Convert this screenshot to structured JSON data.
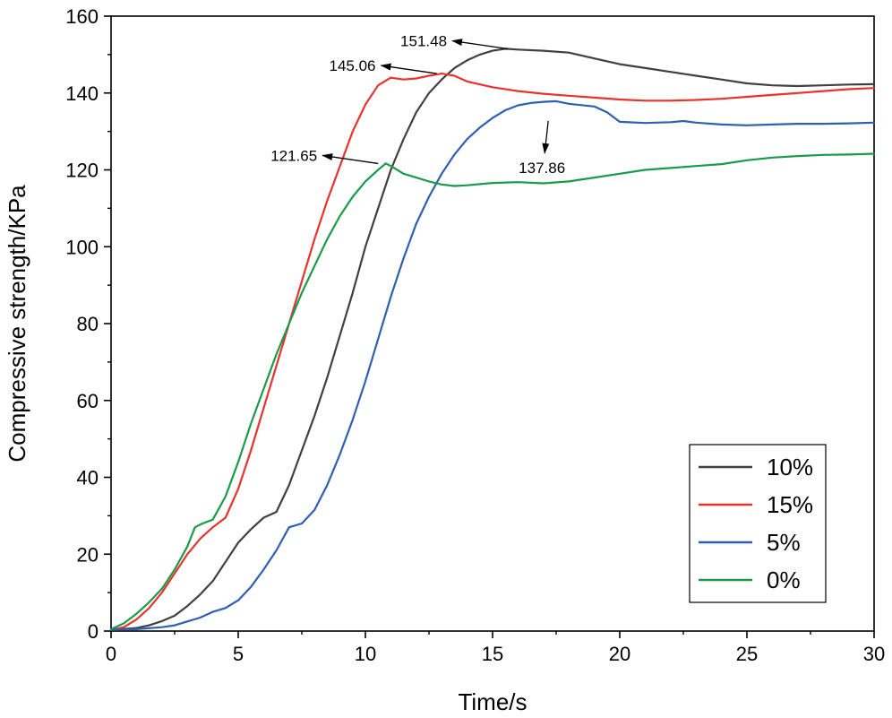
{
  "chart_data": {
    "type": "line",
    "title": "",
    "xlabel": "Time/s",
    "ylabel": "Compressive strength/KPa",
    "xlim": [
      0,
      30
    ],
    "ylim": [
      0,
      160
    ],
    "xticks": [
      0,
      5,
      10,
      15,
      20,
      25,
      30
    ],
    "yticks": [
      0,
      20,
      40,
      60,
      80,
      100,
      120,
      140,
      160
    ],
    "x_tick_labels": [
      "0",
      "5",
      "10",
      "15",
      "20",
      "25",
      "30"
    ],
    "y_tick_labels": [
      "0",
      "20",
      "40",
      "60",
      "80",
      "100",
      "120",
      "140",
      "160"
    ],
    "grid": false,
    "legend_position": "bottom-right",
    "series": [
      {
        "name": "10%",
        "color": "#404040",
        "points": [
          [
            0,
            0.3
          ],
          [
            1,
            0.8
          ],
          [
            1.5,
            1.5
          ],
          [
            2,
            2.6
          ],
          [
            2.5,
            4
          ],
          [
            3,
            6.5
          ],
          [
            3.5,
            9.5
          ],
          [
            4,
            13
          ],
          [
            4.5,
            18
          ],
          [
            5,
            23
          ],
          [
            5.5,
            26.5
          ],
          [
            6,
            29.5
          ],
          [
            6.5,
            31
          ],
          [
            7,
            38
          ],
          [
            7.5,
            47
          ],
          [
            8,
            56
          ],
          [
            8.5,
            66
          ],
          [
            9,
            77
          ],
          [
            9.5,
            88
          ],
          [
            10,
            100
          ],
          [
            10.5,
            110
          ],
          [
            11,
            120
          ],
          [
            11.5,
            128
          ],
          [
            12,
            135
          ],
          [
            12.5,
            140
          ],
          [
            13,
            143.5
          ],
          [
            13.5,
            146.5
          ],
          [
            14,
            148.5
          ],
          [
            14.5,
            150
          ],
          [
            15,
            151
          ],
          [
            15.5,
            151.5
          ],
          [
            16,
            151.3
          ],
          [
            17,
            151
          ],
          [
            18,
            150.5
          ],
          [
            19,
            149
          ],
          [
            20,
            147.5
          ],
          [
            21,
            146.5
          ],
          [
            22,
            145.5
          ],
          [
            23,
            144.5
          ],
          [
            24,
            143.5
          ],
          [
            25,
            142.5
          ],
          [
            26,
            142
          ],
          [
            27,
            141.8
          ],
          [
            28,
            142
          ],
          [
            29,
            142.2
          ],
          [
            30,
            142.3
          ]
        ]
      },
      {
        "name": "15%",
        "color": "#e8332d",
        "points": [
          [
            0,
            0.3
          ],
          [
            0.5,
            1
          ],
          [
            1,
            3
          ],
          [
            1.5,
            6
          ],
          [
            2,
            10
          ],
          [
            2.5,
            15
          ],
          [
            3,
            20
          ],
          [
            3.5,
            24
          ],
          [
            4,
            27
          ],
          [
            4.5,
            29.5
          ],
          [
            5,
            37
          ],
          [
            5.5,
            47
          ],
          [
            6,
            58
          ],
          [
            6.5,
            69
          ],
          [
            7,
            80
          ],
          [
            7.5,
            91
          ],
          [
            8,
            102
          ],
          [
            8.5,
            112
          ],
          [
            9,
            121
          ],
          [
            9.5,
            130
          ],
          [
            10,
            137
          ],
          [
            10.5,
            142
          ],
          [
            11,
            144
          ],
          [
            11.5,
            143.5
          ],
          [
            12,
            143.8
          ],
          [
            12.5,
            144.5
          ],
          [
            13,
            145.06
          ],
          [
            13.5,
            144.5
          ],
          [
            14,
            143
          ],
          [
            15,
            141.5
          ],
          [
            16,
            140.5
          ],
          [
            17,
            139.8
          ],
          [
            18,
            139.3
          ],
          [
            19,
            138.8
          ],
          [
            20,
            138.3
          ],
          [
            21,
            138
          ],
          [
            22,
            138
          ],
          [
            23,
            138.2
          ],
          [
            24,
            138.5
          ],
          [
            25,
            139
          ],
          [
            26,
            139.5
          ],
          [
            27,
            140
          ],
          [
            28,
            140.5
          ],
          [
            29,
            141
          ],
          [
            30,
            141.3
          ]
        ]
      },
      {
        "name": "5%",
        "color": "#2f5fb0",
        "points": [
          [
            0,
            0.3
          ],
          [
            1,
            0.5
          ],
          [
            2,
            1
          ],
          [
            2.5,
            1.5
          ],
          [
            3,
            2.5
          ],
          [
            3.5,
            3.5
          ],
          [
            4,
            5
          ],
          [
            4.5,
            6
          ],
          [
            5,
            8
          ],
          [
            5.5,
            11.5
          ],
          [
            6,
            16
          ],
          [
            6.5,
            21
          ],
          [
            7,
            27
          ],
          [
            7.5,
            28
          ],
          [
            8,
            31.5
          ],
          [
            8.5,
            38
          ],
          [
            9,
            46
          ],
          [
            9.5,
            55
          ],
          [
            10,
            65
          ],
          [
            10.5,
            76
          ],
          [
            11,
            87
          ],
          [
            11.5,
            97
          ],
          [
            12,
            106
          ],
          [
            12.5,
            113
          ],
          [
            13,
            119
          ],
          [
            13.5,
            124
          ],
          [
            14,
            128
          ],
          [
            14.5,
            131
          ],
          [
            15,
            133.5
          ],
          [
            15.5,
            135.5
          ],
          [
            16,
            136.8
          ],
          [
            16.5,
            137.4
          ],
          [
            17,
            137.7
          ],
          [
            17.5,
            137.86
          ],
          [
            18,
            137.2
          ],
          [
            19,
            136.5
          ],
          [
            19.5,
            135
          ],
          [
            20,
            132.5
          ],
          [
            21,
            132.2
          ],
          [
            22,
            132.4
          ],
          [
            22.5,
            132.7
          ],
          [
            23,
            132.3
          ],
          [
            24,
            131.8
          ],
          [
            25,
            131.6
          ],
          [
            26,
            131.8
          ],
          [
            27,
            132
          ],
          [
            28,
            132
          ],
          [
            29,
            132.1
          ],
          [
            30,
            132.3
          ]
        ]
      },
      {
        "name": "0%",
        "color": "#1a9a4a",
        "points": [
          [
            0,
            0.5
          ],
          [
            0.5,
            2
          ],
          [
            1,
            4.5
          ],
          [
            1.5,
            7.5
          ],
          [
            2,
            11
          ],
          [
            2.5,
            16
          ],
          [
            3,
            22
          ],
          [
            3.3,
            27
          ],
          [
            3.6,
            28
          ],
          [
            4,
            29
          ],
          [
            4.5,
            35
          ],
          [
            5,
            44
          ],
          [
            5.5,
            54
          ],
          [
            6,
            63
          ],
          [
            6.5,
            72
          ],
          [
            7,
            80
          ],
          [
            7.5,
            88
          ],
          [
            8,
            95
          ],
          [
            8.5,
            102
          ],
          [
            9,
            108
          ],
          [
            9.5,
            113
          ],
          [
            10,
            117
          ],
          [
            10.5,
            120
          ],
          [
            10.8,
            121.65
          ],
          [
            11,
            121
          ],
          [
            11.5,
            119
          ],
          [
            12,
            118
          ],
          [
            12.5,
            117
          ],
          [
            13,
            116.2
          ],
          [
            13.5,
            115.8
          ],
          [
            14,
            116
          ],
          [
            15,
            116.6
          ],
          [
            16,
            116.8
          ],
          [
            17,
            116.5
          ],
          [
            18,
            117
          ],
          [
            19,
            118
          ],
          [
            20,
            119
          ],
          [
            21,
            120
          ],
          [
            22,
            120.5
          ],
          [
            23,
            121
          ],
          [
            24,
            121.5
          ],
          [
            25,
            122.5
          ],
          [
            26,
            123.2
          ],
          [
            27,
            123.6
          ],
          [
            28,
            123.9
          ],
          [
            29,
            124
          ],
          [
            30,
            124.2
          ]
        ]
      }
    ],
    "annotations": [
      {
        "label": "151.48",
        "series": "10%",
        "point": [
          15.6,
          151.48
        ],
        "direction": "left"
      },
      {
        "label": "145.06",
        "series": "15%",
        "point": [
          12.8,
          145.06
        ],
        "direction": "left"
      },
      {
        "label": "121.65",
        "series": "0%",
        "point": [
          10.5,
          121.65
        ],
        "direction": "left"
      },
      {
        "label": "137.86",
        "series": "5%",
        "point": [
          17.4,
          137.86
        ],
        "direction": "down"
      }
    ]
  }
}
